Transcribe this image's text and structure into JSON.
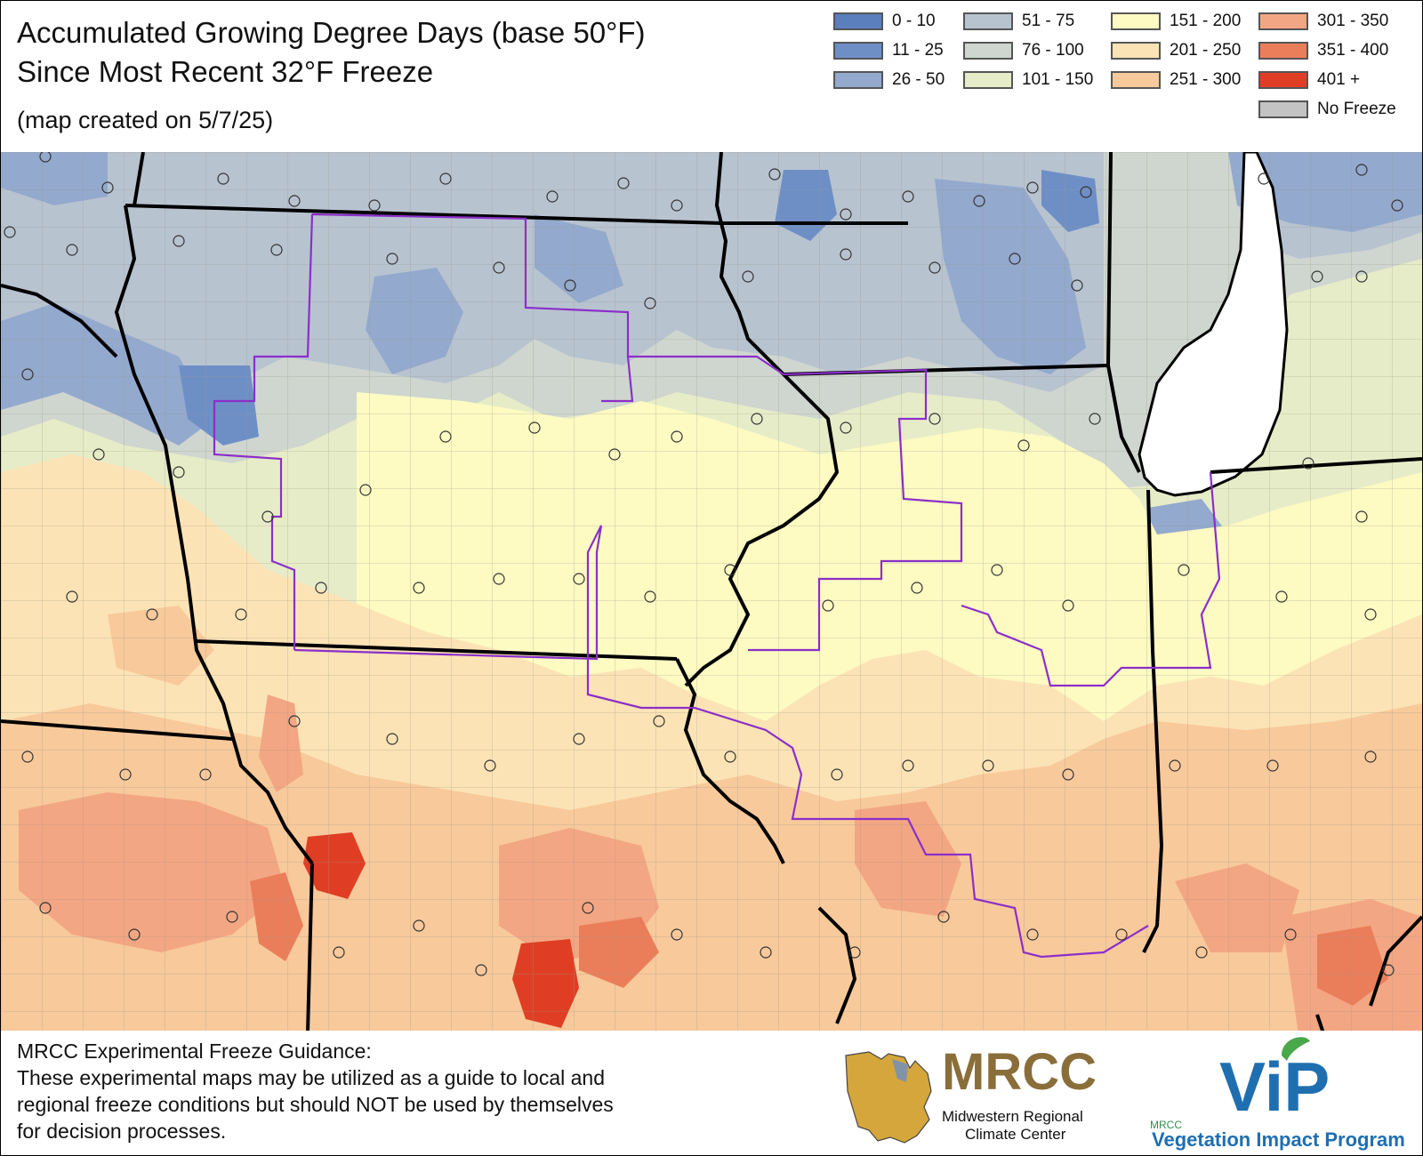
{
  "title": "Accumulated Growing Degree Days (base 50°F)",
  "subtitle": "Since Most Recent 32°F Freeze",
  "created": "(map created on 5/7/25)",
  "legend": [
    {
      "label": "0 - 10",
      "color": "#5b7fbd"
    },
    {
      "label": "11 - 25",
      "color": "#6e8fc6"
    },
    {
      "label": "26 - 50",
      "color": "#93a9cd"
    },
    {
      "label": "51 - 75",
      "color": "#b8c3d0"
    },
    {
      "label": "76 - 100",
      "color": "#cfd6cf"
    },
    {
      "label": "101 - 150",
      "color": "#e7ecc8"
    },
    {
      "label": "151 - 200",
      "color": "#fdfac2"
    },
    {
      "label": "201 - 250",
      "color": "#fce3b5"
    },
    {
      "label": "251 - 300",
      "color": "#f8c99b"
    },
    {
      "label": "301 - 350",
      "color": "#f3a683"
    },
    {
      "label": "351 - 400",
      "color": "#ea7e5a"
    },
    {
      "label": "401 +",
      "color": "#e03e24"
    },
    {
      "label": "No Freeze",
      "color": "#c3c3c3"
    }
  ],
  "disclaimer": {
    "heading": "MRCC Experimental Freeze Guidance:",
    "lines": [
      "These experimental maps may be utilized as a guide to local and",
      "regional freeze conditions but should NOT be used by themselves",
      "for decision processes."
    ]
  },
  "logos": {
    "mrcc_name": "MRCC",
    "mrcc_line1": "Midwestern Regional",
    "mrcc_line2": "Climate Center",
    "vip_small": "MRCC",
    "vip_name": "ViP",
    "vip_line": "Vegetation Impact Program"
  },
  "colors": {
    "state_border": "#000000",
    "region_border": "#8b2fc9",
    "lake": "#ffffff",
    "county_line": "#9a9a8a"
  }
}
